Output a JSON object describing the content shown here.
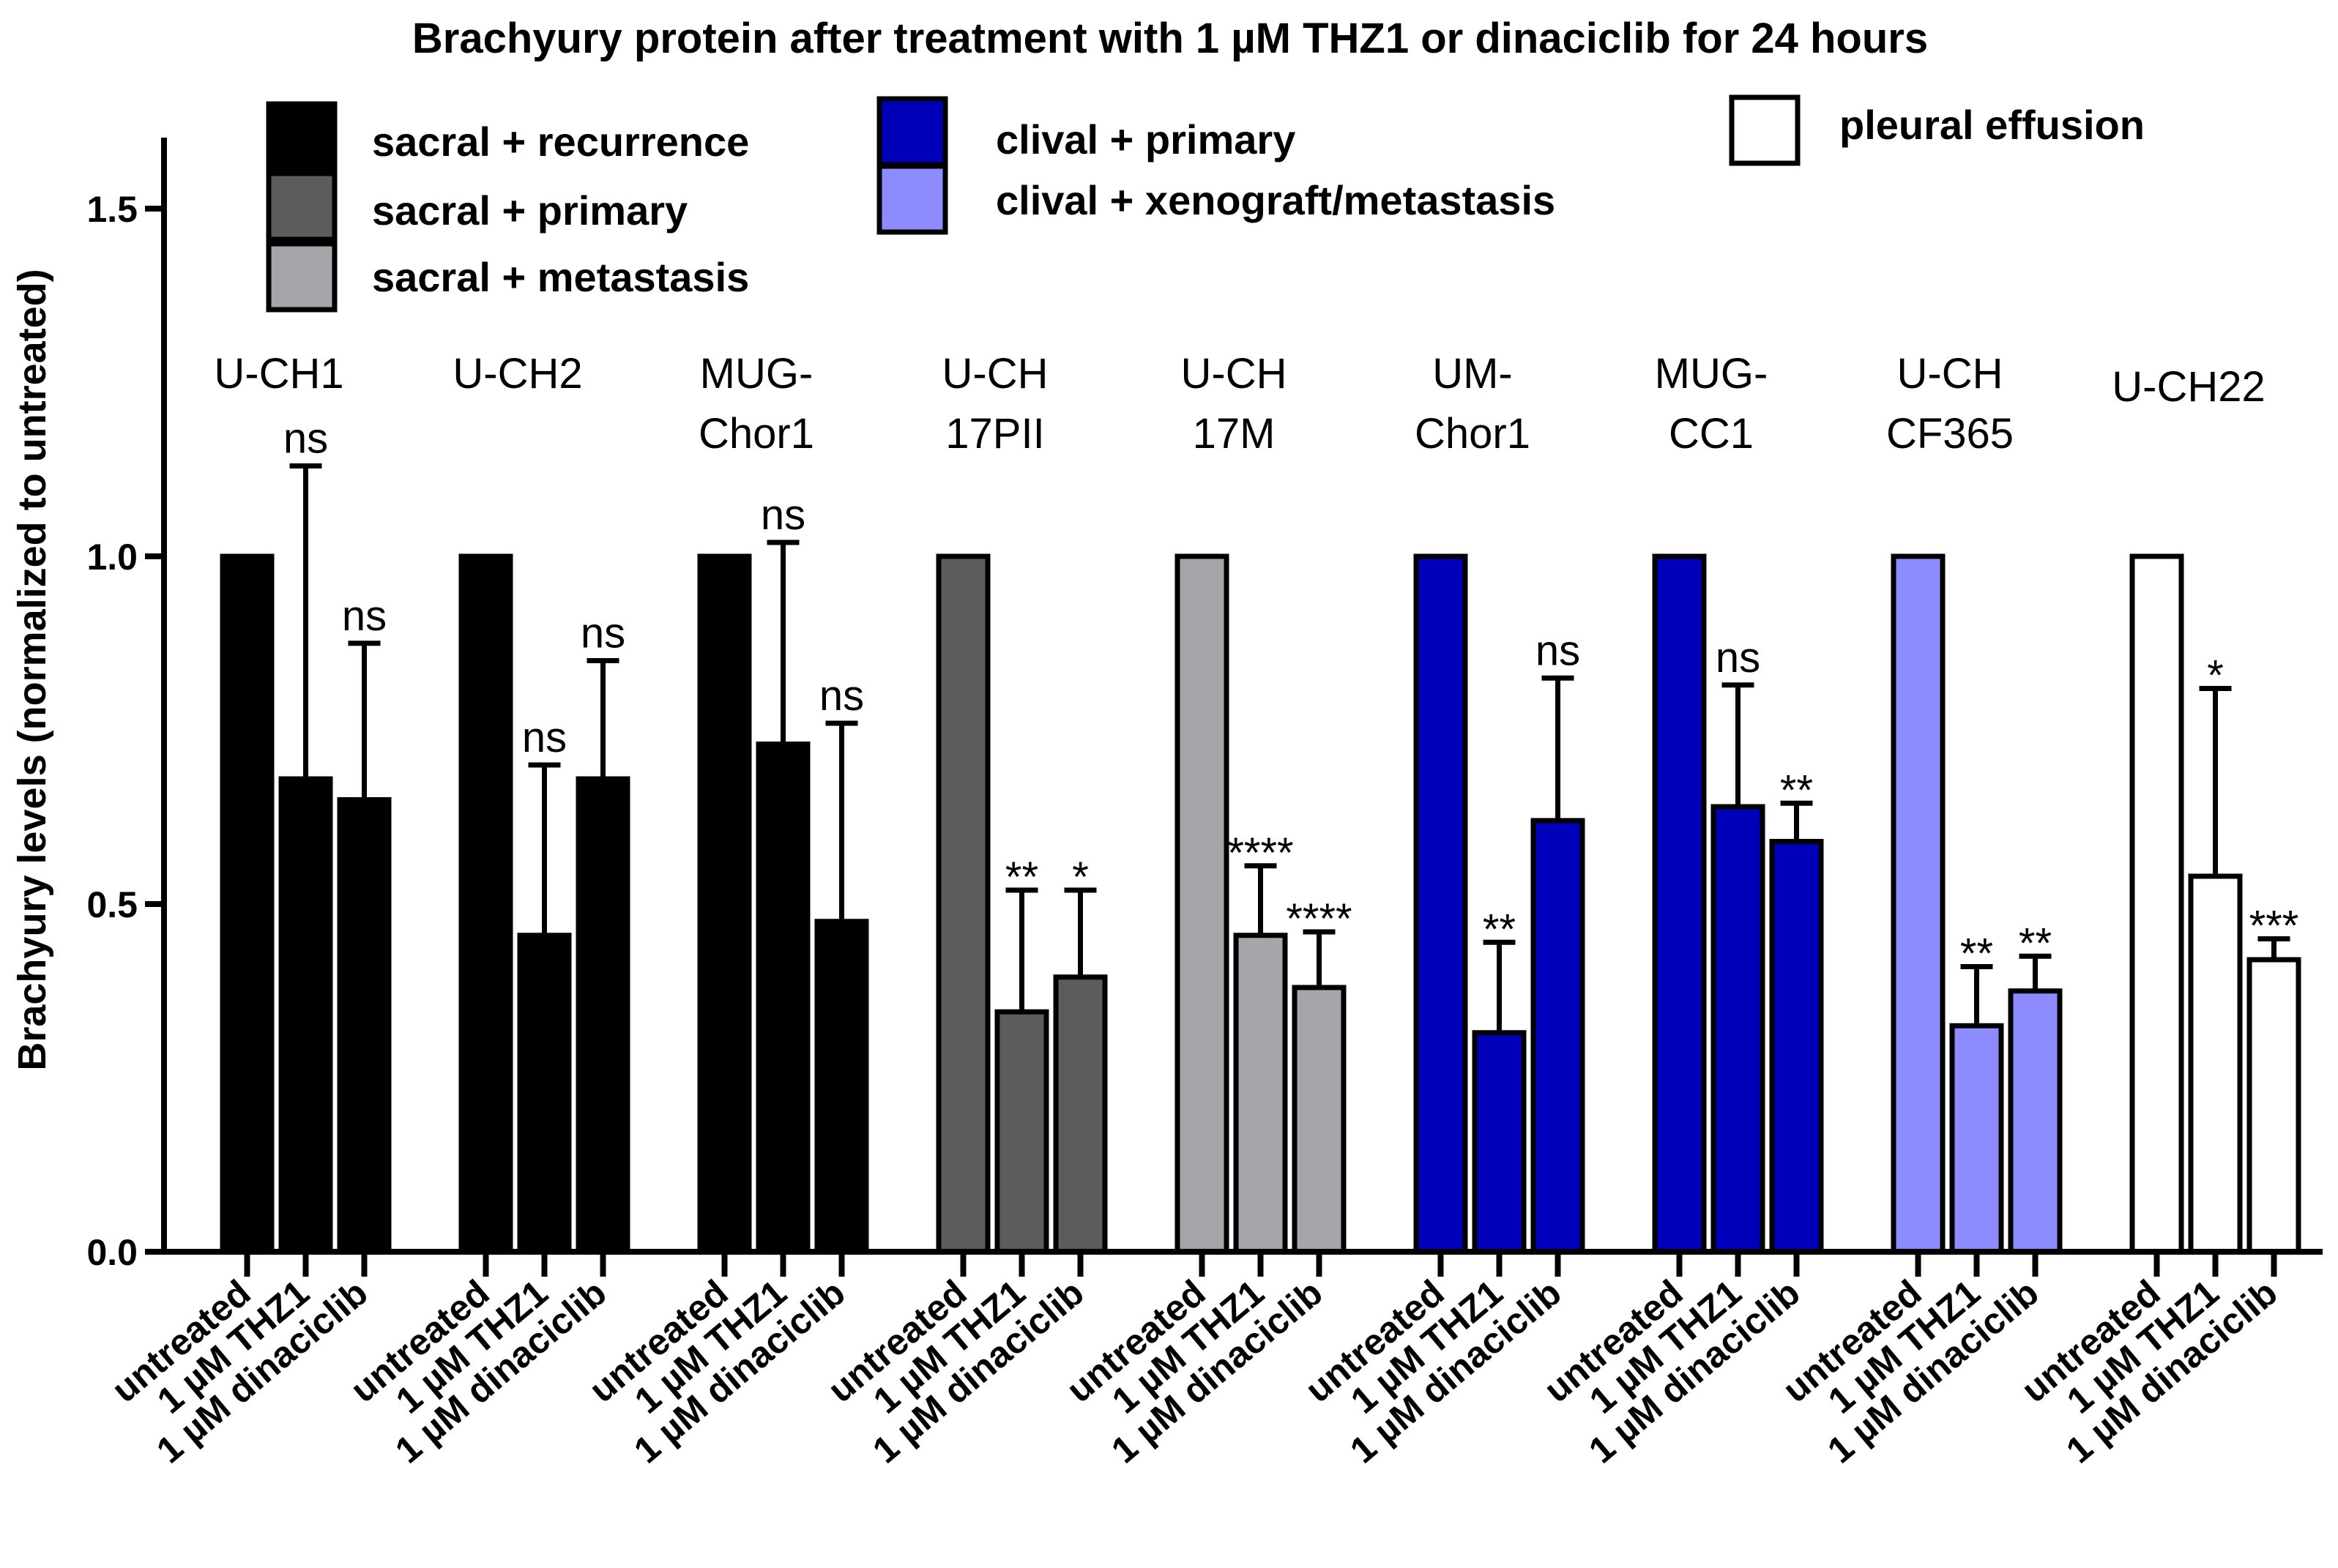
{
  "chart_data": {
    "type": "bar",
    "title": "Brachyury protein after treatment with 1 µM THZ1 or dinaciclib for 24 hours",
    "ylabel": "Brachyury levels (normalized to untreated)",
    "xlabel": "",
    "ylim": [
      0,
      1.6
    ],
    "yticks": [
      0.0,
      0.5,
      1.0,
      1.5
    ],
    "ytick_labels": [
      "0.0",
      "0.5",
      "1.0",
      "1.5"
    ],
    "treatments": [
      "untreated",
      "1 µM THZ1",
      "1 µM dinaciclib"
    ],
    "legend": [
      {
        "label": "sacral + recurrence",
        "color": "#000000"
      },
      {
        "label": "sacral + primary",
        "color": "#5c5c5c"
      },
      {
        "label": "sacral + metastasis",
        "color": "#a5a5aa"
      },
      {
        "label": "clival + primary",
        "color": "#0000bb"
      },
      {
        "label": "clival + xenograft/metastasis",
        "color": "#8c8cff"
      },
      {
        "label": "pleural effusion",
        "color": "#ffffff"
      }
    ],
    "groups": [
      {
        "line1": "U-CH1",
        "line2": "",
        "color": "#000000",
        "values": [
          1.0,
          0.68,
          0.65
        ],
        "errors": [
          0,
          0.45,
          0.225
        ],
        "sig": [
          "",
          "ns",
          "ns"
        ]
      },
      {
        "line1": "U-CH2",
        "line2": "",
        "color": "#000000",
        "values": [
          1.0,
          0.455,
          0.68
        ],
        "errors": [
          0,
          0.245,
          0.17
        ],
        "sig": [
          "",
          "ns",
          "ns"
        ]
      },
      {
        "line1": "MUG-",
        "line2": "Chor1",
        "color": "#000000",
        "values": [
          1.0,
          0.73,
          0.475
        ],
        "errors": [
          0,
          0.29,
          0.285
        ],
        "sig": [
          "",
          "ns",
          "ns"
        ]
      },
      {
        "line1": "U-CH",
        "line2": "17PII",
        "color": "#5c5c5c",
        "values": [
          1.0,
          0.345,
          0.395
        ],
        "errors": [
          0,
          0.175,
          0.125
        ],
        "sig": [
          "",
          "**",
          "*"
        ]
      },
      {
        "line1": "U-CH",
        "line2": "17M",
        "color": "#a5a5aa",
        "values": [
          1.0,
          0.455,
          0.38
        ],
        "errors": [
          0,
          0.1,
          0.08
        ],
        "sig": [
          "",
          "****",
          "****"
        ]
      },
      {
        "line1": "UM-",
        "line2": "Chor1",
        "color": "#0000bb",
        "values": [
          1.0,
          0.315,
          0.62
        ],
        "errors": [
          0,
          0.13,
          0.205
        ],
        "sig": [
          "",
          "**",
          "ns"
        ]
      },
      {
        "line1": "MUG-",
        "line2": "CC1",
        "color": "#0000bb",
        "values": [
          1.0,
          0.64,
          0.59
        ],
        "errors": [
          0,
          0.175,
          0.055
        ],
        "sig": [
          "",
          "ns",
          "**"
        ]
      },
      {
        "line1": "U-CH",
        "line2": "CF365",
        "color": "#8c8cff",
        "values": [
          1.0,
          0.325,
          0.375
        ],
        "errors": [
          0,
          0.085,
          0.05
        ],
        "sig": [
          "",
          "**",
          "**"
        ]
      },
      {
        "line1": "U-CH22",
        "line2": "",
        "color": "#ffffff",
        "values": [
          1.0,
          0.54,
          0.42
        ],
        "errors": [
          0,
          0.27,
          0.03
        ],
        "sig": [
          "",
          "*",
          "***"
        ]
      }
    ]
  }
}
